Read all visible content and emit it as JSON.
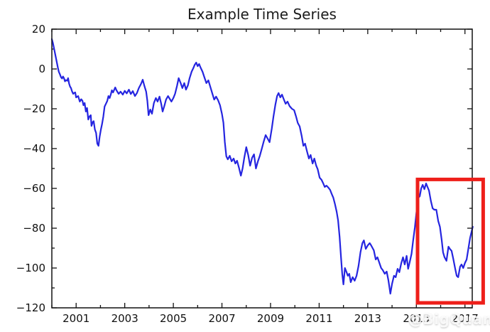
{
  "figure": {
    "background": "#ffffff"
  },
  "watermark": {
    "icon": "weibo-eye-icon",
    "text": "@BigQuant",
    "color": "rgba(255,255,255,0.85)"
  },
  "chart_data": {
    "type": "line",
    "title": "Example Time Series",
    "xlabel": "",
    "ylabel": "",
    "xlim": [
      2000,
      2017.3
    ],
    "ylim": [
      -120,
      20
    ],
    "xticks_major": [
      2001,
      2003,
      2005,
      2007,
      2009,
      2011,
      2013,
      2015,
      2017
    ],
    "xticks_minor": [
      2000,
      2002,
      2004,
      2006,
      2008,
      2010,
      2012,
      2014,
      2016
    ],
    "yticks_major": [
      20,
      0,
      -20,
      -40,
      -60,
      -80,
      -100,
      -120
    ],
    "yticks_minor": [
      10,
      -10,
      -30,
      -50,
      -70,
      -90,
      -110
    ],
    "grid": false,
    "legend": "none",
    "line_color": "#2525e0",
    "line_width": 2.2,
    "axis_color": "#111111",
    "tick_label_color": "#111111",
    "series": [
      {
        "name": "time-series",
        "points": [
          [
            2000.0,
            15
          ],
          [
            2000.04,
            13.2
          ],
          [
            2000.08,
            11
          ],
          [
            2000.13,
            8
          ],
          [
            2000.17,
            5.5
          ],
          [
            2000.21,
            3
          ],
          [
            2000.25,
            0.5
          ],
          [
            2000.29,
            -1.5
          ],
          [
            2000.33,
            -2.6
          ],
          [
            2000.38,
            -4.2
          ],
          [
            2000.42,
            -4.8
          ],
          [
            2000.46,
            -3.8
          ],
          [
            2000.5,
            -4.6
          ],
          [
            2000.54,
            -6.2
          ],
          [
            2000.58,
            -5.6
          ],
          [
            2000.63,
            -5.9
          ],
          [
            2000.67,
            -4.6
          ],
          [
            2000.71,
            -7.4
          ],
          [
            2000.75,
            -8.9
          ],
          [
            2000.79,
            -9.6
          ],
          [
            2000.83,
            -11.2
          ],
          [
            2000.88,
            -12.5
          ],
          [
            2000.92,
            -12
          ],
          [
            2000.96,
            -11.8
          ],
          [
            2001.0,
            -14.3
          ],
          [
            2001.08,
            -13.6
          ],
          [
            2001.15,
            -16.4
          ],
          [
            2001.21,
            -15.2
          ],
          [
            2001.26,
            -16
          ],
          [
            2001.3,
            -18.2
          ],
          [
            2001.35,
            -17.1
          ],
          [
            2001.4,
            -21.4
          ],
          [
            2001.45,
            -19.6
          ],
          [
            2001.5,
            -25.4
          ],
          [
            2001.55,
            -23.9
          ],
          [
            2001.6,
            -23.2
          ],
          [
            2001.63,
            -28.6
          ],
          [
            2001.68,
            -26.8
          ],
          [
            2001.72,
            -26.2
          ],
          [
            2001.77,
            -30.4
          ],
          [
            2001.82,
            -32.1
          ],
          [
            2001.87,
            -37.5
          ],
          [
            2001.92,
            -38.6
          ],
          [
            2001.97,
            -33.9
          ],
          [
            2002.02,
            -30.4
          ],
          [
            2002.07,
            -27.5
          ],
          [
            2002.12,
            -23.9
          ],
          [
            2002.17,
            -18.9
          ],
          [
            2002.22,
            -17.6
          ],
          [
            2002.28,
            -16.1
          ],
          [
            2002.33,
            -13.6
          ],
          [
            2002.38,
            -14.6
          ],
          [
            2002.43,
            -12.6
          ],
          [
            2002.47,
            -10.7
          ],
          [
            2002.52,
            -11.8
          ],
          [
            2002.61,
            -9.3
          ],
          [
            2002.66,
            -10.7
          ],
          [
            2002.75,
            -12.5
          ],
          [
            2002.83,
            -11.4
          ],
          [
            2002.92,
            -12.9
          ],
          [
            2003.0,
            -11
          ],
          [
            2003.08,
            -12.3
          ],
          [
            2003.17,
            -10.4
          ],
          [
            2003.25,
            -12.6
          ],
          [
            2003.33,
            -11.1
          ],
          [
            2003.42,
            -13.6
          ],
          [
            2003.5,
            -12.1
          ],
          [
            2003.58,
            -9.6
          ],
          [
            2003.67,
            -7.5
          ],
          [
            2003.74,
            -5.4
          ],
          [
            2003.81,
            -8.6
          ],
          [
            2003.88,
            -11.4
          ],
          [
            2003.93,
            -16
          ],
          [
            2003.98,
            -23.2
          ],
          [
            2004.05,
            -20.4
          ],
          [
            2004.12,
            -22.5
          ],
          [
            2004.2,
            -17.1
          ],
          [
            2004.28,
            -14.6
          ],
          [
            2004.35,
            -16.4
          ],
          [
            2004.43,
            -13.9
          ],
          [
            2004.5,
            -17.5
          ],
          [
            2004.56,
            -21.4
          ],
          [
            2004.63,
            -18.6
          ],
          [
            2004.7,
            -15.4
          ],
          [
            2004.78,
            -13.6
          ],
          [
            2004.85,
            -15
          ],
          [
            2004.92,
            -16.4
          ],
          [
            2005.0,
            -14.6
          ],
          [
            2005.07,
            -12.5
          ],
          [
            2005.15,
            -8.6
          ],
          [
            2005.22,
            -4.6
          ],
          [
            2005.3,
            -7.1
          ],
          [
            2005.37,
            -9.6
          ],
          [
            2005.45,
            -7.1
          ],
          [
            2005.52,
            -10.4
          ],
          [
            2005.6,
            -8.2
          ],
          [
            2005.67,
            -4.6
          ],
          [
            2005.75,
            -1.4
          ],
          [
            2005.82,
            0.4
          ],
          [
            2005.88,
            2.1
          ],
          [
            2005.94,
            3.2
          ],
          [
            2006.0,
            1.4
          ],
          [
            2006.06,
            2.5
          ],
          [
            2006.12,
            0.7
          ],
          [
            2006.2,
            -1.4
          ],
          [
            2006.28,
            -4.3
          ],
          [
            2006.36,
            -7.1
          ],
          [
            2006.44,
            -5.7
          ],
          [
            2006.52,
            -8.9
          ],
          [
            2006.6,
            -12.1
          ],
          [
            2006.68,
            -15.4
          ],
          [
            2006.76,
            -13.9
          ],
          [
            2006.84,
            -15.7
          ],
          [
            2006.92,
            -18.2
          ],
          [
            2007.0,
            -22.5
          ],
          [
            2007.06,
            -27
          ],
          [
            2007.12,
            -36.8
          ],
          [
            2007.18,
            -43.9
          ],
          [
            2007.24,
            -45.4
          ],
          [
            2007.32,
            -43.6
          ],
          [
            2007.4,
            -46.4
          ],
          [
            2007.48,
            -45
          ],
          [
            2007.55,
            -47.5
          ],
          [
            2007.62,
            -46.1
          ],
          [
            2007.7,
            -49.6
          ],
          [
            2007.78,
            -53.6
          ],
          [
            2007.85,
            -50
          ],
          [
            2007.92,
            -44.6
          ],
          [
            2008.0,
            -39.3
          ],
          [
            2008.08,
            -43.2
          ],
          [
            2008.16,
            -48.6
          ],
          [
            2008.24,
            -44.6
          ],
          [
            2008.32,
            -42.9
          ],
          [
            2008.4,
            -50
          ],
          [
            2008.48,
            -46.4
          ],
          [
            2008.56,
            -43.6
          ],
          [
            2008.64,
            -40
          ],
          [
            2008.72,
            -36.4
          ],
          [
            2008.8,
            -33.2
          ],
          [
            2008.88,
            -35
          ],
          [
            2008.96,
            -36.8
          ],
          [
            2009.05,
            -30
          ],
          [
            2009.12,
            -23.9
          ],
          [
            2009.2,
            -17.9
          ],
          [
            2009.27,
            -13.6
          ],
          [
            2009.33,
            -12.1
          ],
          [
            2009.4,
            -14.3
          ],
          [
            2009.47,
            -12.9
          ],
          [
            2009.55,
            -15.4
          ],
          [
            2009.62,
            -17.5
          ],
          [
            2009.7,
            -16.4
          ],
          [
            2009.78,
            -18.6
          ],
          [
            2009.88,
            -20
          ],
          [
            2009.97,
            -20.7
          ],
          [
            2010.05,
            -23.9
          ],
          [
            2010.12,
            -27.1
          ],
          [
            2010.2,
            -28.9
          ],
          [
            2010.28,
            -33.6
          ],
          [
            2010.35,
            -38.6
          ],
          [
            2010.42,
            -37.5
          ],
          [
            2010.5,
            -41.4
          ],
          [
            2010.58,
            -45
          ],
          [
            2010.65,
            -43.2
          ],
          [
            2010.73,
            -47.5
          ],
          [
            2010.8,
            -45
          ],
          [
            2010.88,
            -48.6
          ],
          [
            2010.94,
            -50.4
          ],
          [
            2011.02,
            -54.6
          ],
          [
            2011.1,
            -55.7
          ],
          [
            2011.17,
            -57.5
          ],
          [
            2011.23,
            -59.3
          ],
          [
            2011.3,
            -58.6
          ],
          [
            2011.38,
            -59.6
          ],
          [
            2011.45,
            -60.7
          ],
          [
            2011.52,
            -62.9
          ],
          [
            2011.58,
            -64.6
          ],
          [
            2011.65,
            -67.9
          ],
          [
            2011.72,
            -71.8
          ],
          [
            2011.78,
            -76.1
          ],
          [
            2011.84,
            -84.3
          ],
          [
            2011.9,
            -94.6
          ],
          [
            2011.95,
            -102.9
          ],
          [
            2012.0,
            -108.2
          ],
          [
            2012.06,
            -100
          ],
          [
            2012.12,
            -101.8
          ],
          [
            2012.18,
            -103.9
          ],
          [
            2012.24,
            -102.9
          ],
          [
            2012.3,
            -107.1
          ],
          [
            2012.38,
            -104.6
          ],
          [
            2012.46,
            -106.4
          ],
          [
            2012.54,
            -103.9
          ],
          [
            2012.62,
            -98.9
          ],
          [
            2012.7,
            -92.1
          ],
          [
            2012.78,
            -87.5
          ],
          [
            2012.84,
            -86.1
          ],
          [
            2012.92,
            -90.4
          ],
          [
            2013.0,
            -88.6
          ],
          [
            2013.08,
            -87.5
          ],
          [
            2013.14,
            -88.6
          ],
          [
            2013.25,
            -91.1
          ],
          [
            2013.33,
            -95.7
          ],
          [
            2013.4,
            -94.6
          ],
          [
            2013.48,
            -97.5
          ],
          [
            2013.55,
            -100
          ],
          [
            2013.62,
            -101.1
          ],
          [
            2013.7,
            -102.9
          ],
          [
            2013.78,
            -101.8
          ],
          [
            2013.85,
            -106.1
          ],
          [
            2013.93,
            -112.9
          ],
          [
            2014.0,
            -107.9
          ],
          [
            2014.08,
            -103.9
          ],
          [
            2014.15,
            -104.6
          ],
          [
            2014.23,
            -100.4
          ],
          [
            2014.3,
            -102.1
          ],
          [
            2014.38,
            -97.5
          ],
          [
            2014.45,
            -94.6
          ],
          [
            2014.52,
            -98.2
          ],
          [
            2014.6,
            -93.9
          ],
          [
            2014.66,
            -100.4
          ],
          [
            2014.73,
            -96.8
          ],
          [
            2014.8,
            -92.9
          ],
          [
            2014.87,
            -86.1
          ],
          [
            2014.94,
            -79.6
          ],
          [
            2015.0,
            -72.5
          ],
          [
            2015.07,
            -65
          ],
          [
            2015.14,
            -63.9
          ],
          [
            2015.2,
            -60
          ],
          [
            2015.26,
            -58.2
          ],
          [
            2015.33,
            -60.4
          ],
          [
            2015.4,
            -57.5
          ],
          [
            2015.46,
            -59.3
          ],
          [
            2015.52,
            -61.1
          ],
          [
            2015.6,
            -66.4
          ],
          [
            2015.67,
            -70
          ],
          [
            2015.74,
            -70.7
          ],
          [
            2015.82,
            -70.7
          ],
          [
            2015.9,
            -76.4
          ],
          [
            2015.97,
            -79.3
          ],
          [
            2016.04,
            -85.7
          ],
          [
            2016.1,
            -92.1
          ],
          [
            2016.16,
            -94.6
          ],
          [
            2016.24,
            -96.4
          ],
          [
            2016.32,
            -89.3
          ],
          [
            2016.38,
            -90.4
          ],
          [
            2016.45,
            -91.4
          ],
          [
            2016.52,
            -95.4
          ],
          [
            2016.6,
            -100.4
          ],
          [
            2016.66,
            -103.9
          ],
          [
            2016.72,
            -104.6
          ],
          [
            2016.8,
            -99.3
          ],
          [
            2016.86,
            -98.2
          ],
          [
            2016.93,
            -100
          ],
          [
            2017.0,
            -97.5
          ],
          [
            2017.07,
            -95.7
          ],
          [
            2017.14,
            -90.4
          ],
          [
            2017.21,
            -85
          ],
          [
            2017.28,
            -81.4
          ],
          [
            2017.32,
            -79.3
          ]
        ]
      }
    ],
    "annotations": [
      {
        "type": "rect",
        "name": "highlight-recent-period",
        "x0": 2015.05,
        "x1": 2017.75,
        "y0": -117.5,
        "y1": -55.5,
        "color": "#ee1f1a",
        "line_width": 5
      }
    ]
  }
}
